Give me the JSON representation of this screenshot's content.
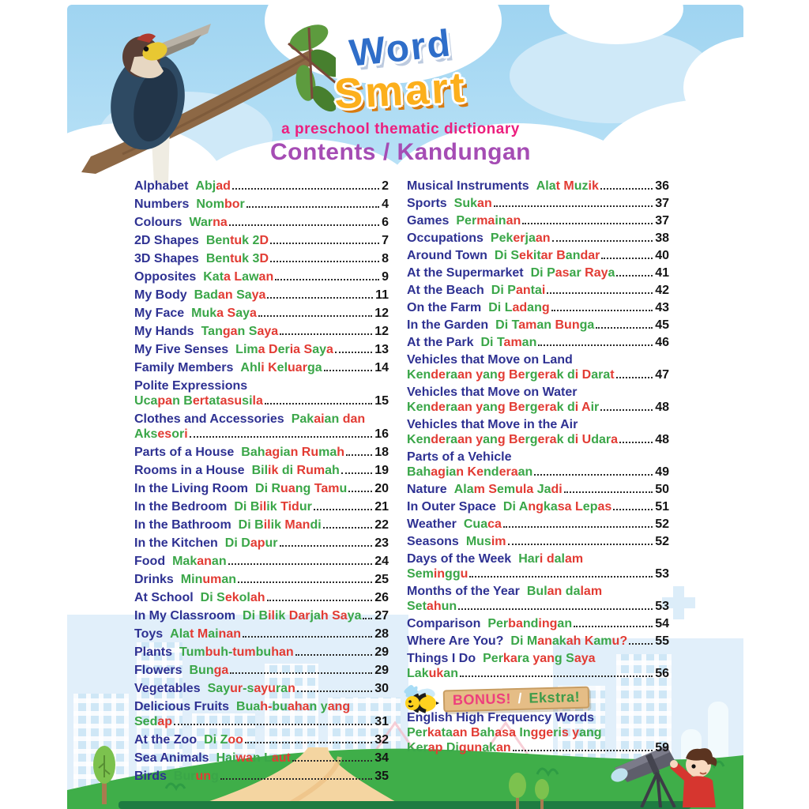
{
  "header": {
    "title_word": "Word",
    "title_smart": "Smart",
    "subtitle": "a preschool thematic dictionary",
    "heading": "Contents / Kandungan"
  },
  "colors": {
    "english_text": "#2e3192",
    "malay_green": "#3aa648",
    "malay_red": "#e23b33",
    "page_number": "#141414",
    "title_blue": "#2f6ec9",
    "title_yellow_orange": "#fcaf1c",
    "subtitle_pink": "#ec1f7e",
    "heading_purple": "#a54cb4",
    "banner_tan": "#e5bd86",
    "bonus_pink": "#ee3f7d",
    "bonus_green": "#3f9c4a",
    "sky_blue": "#9fd4f1",
    "hill_green": "#3fae49",
    "path_tan": "#f4d5a1"
  },
  "toc": {
    "left": [
      {
        "en": "Alphabet",
        "ms": "Abjad",
        "page": "2"
      },
      {
        "en": "Numbers",
        "ms": "Nombor",
        "page": "4"
      },
      {
        "en": "Colours",
        "ms": "Warna",
        "page": "6"
      },
      {
        "en": "2D Shapes",
        "ms": "Bentuk 2D",
        "page": "7"
      },
      {
        "en": "3D Shapes",
        "ms": "Bentuk 3D",
        "page": "8"
      },
      {
        "en": "Opposites",
        "ms": "Kata Lawan",
        "page": "9"
      },
      {
        "en": "My Body",
        "ms": "Badan Saya",
        "page": "11"
      },
      {
        "en": "My Face",
        "ms": "Muka Saya",
        "page": "12"
      },
      {
        "en": "My Hands",
        "ms": "Tangan Saya",
        "page": "12"
      },
      {
        "en": "My Five Senses",
        "ms": "Lima Deria Saya",
        "page": "13"
      },
      {
        "en": "Family Members",
        "ms": "Ahli Keluarga",
        "page": "14"
      },
      {
        "en": "Polite Expressions",
        "ms": "Ucapan Bertatasusila",
        "page": "15",
        "break_after_en": true
      },
      {
        "en": "Clothes and Accessories",
        "ms": "Pakaian dan|Aksesori",
        "page": "16"
      },
      {
        "en": "Parts of a House",
        "ms": "Bahagian Rumah",
        "page": "18"
      },
      {
        "en": "Rooms in a House",
        "ms": "Bilik di Rumah",
        "page": "19"
      },
      {
        "en": "In the Living Room",
        "ms": "Di Ruang Tamu",
        "page": "20"
      },
      {
        "en": "In the Bedroom",
        "ms": "Di Bilik Tidur",
        "page": "21"
      },
      {
        "en": "In the Bathroom",
        "ms": "Di Bilik Mandi",
        "page": "22"
      },
      {
        "en": "In the Kitchen",
        "ms": "Di Dapur",
        "page": "23"
      },
      {
        "en": "Food",
        "ms": "Makanan",
        "page": "24"
      },
      {
        "en": "Drinks",
        "ms": "Minuman",
        "page": "25"
      },
      {
        "en": "At School",
        "ms": "Di Sekolah",
        "page": "26"
      },
      {
        "en": "In My Classroom",
        "ms": "Di Bilik Darjah Saya",
        "page": "27"
      },
      {
        "en": "Toys",
        "ms": "Alat Mainan",
        "page": "28"
      },
      {
        "en": "Plants",
        "ms": "Tumbuh-tumbuhan",
        "page": "29"
      },
      {
        "en": "Flowers",
        "ms": "Bunga",
        "page": "29"
      },
      {
        "en": "Vegetables",
        "ms": "Sayur-sayuran",
        "page": "30"
      },
      {
        "en": "Delicious Fruits",
        "ms": "Buah-buahan yang|Sedap",
        "page": "31"
      },
      {
        "en": "At the Zoo",
        "ms": "Di Zoo",
        "page": "32"
      },
      {
        "en": "Sea Animals",
        "ms": "Haiwan Laut",
        "page": "34"
      },
      {
        "en": "Birds",
        "ms": "Burung",
        "page": "35"
      }
    ],
    "right": [
      {
        "en": "Musical Instruments",
        "ms": "Alat Muzik",
        "page": "36"
      },
      {
        "en": "Sports",
        "ms": "Sukan",
        "page": "37"
      },
      {
        "en": "Games",
        "ms": "Permainan",
        "page": "37"
      },
      {
        "en": "Occupations",
        "ms": "Pekerjaan",
        "page": "38"
      },
      {
        "en": "Around Town",
        "ms": "Di Sekitar Bandar",
        "page": "40"
      },
      {
        "en": "At the Supermarket",
        "ms": "Di Pasar Raya",
        "page": "41"
      },
      {
        "en": "At the Beach",
        "ms": "Di Pantai",
        "page": "42"
      },
      {
        "en": "On the Farm",
        "ms": "Di Ladang",
        "page": "43"
      },
      {
        "en": "In the Garden",
        "ms": "Di Taman Bunga",
        "page": "45"
      },
      {
        "en": "At the Park",
        "ms": "Di Taman",
        "page": "46"
      },
      {
        "en": "Vehicles that Move on Land",
        "ms": "Kenderaan yang Bergerak di Darat",
        "page": "47",
        "break_after_en": true
      },
      {
        "en": "Vehicles that Move on Water",
        "ms": "Kenderaan yang Bergerak di Air",
        "page": "48",
        "break_after_en": true
      },
      {
        "en": "Vehicles that Move in the Air",
        "ms": "Kenderaan yang Bergerak di Udara",
        "page": "48",
        "break_after_en": true
      },
      {
        "en": "Parts of a Vehicle",
        "ms": "Bahagian Kenderaan",
        "page": "49",
        "break_after_en": true
      },
      {
        "en": "Nature",
        "ms": "Alam Semula Jadi",
        "page": "50"
      },
      {
        "en": "In Outer Space",
        "ms": "Di Angkasa Lepas",
        "page": "51"
      },
      {
        "en": "Weather",
        "ms": "Cuaca",
        "page": "52"
      },
      {
        "en": "Seasons",
        "ms": "Musim",
        "page": "52"
      },
      {
        "en": "Days of the Week",
        "ms": "Hari dalam|Seminggu",
        "page": "53"
      },
      {
        "en": "Months of the Year",
        "ms": "Bulan dalam|Setahun",
        "page": "53"
      },
      {
        "en": "Comparison",
        "ms": "Perbandingan",
        "page": "54"
      },
      {
        "en": "Where Are You?",
        "ms": "Di Manakah Kamu?",
        "page": "55"
      },
      {
        "en": "Things I Do",
        "ms": "Perkara yang Saya|Lakukan",
        "page": "56"
      }
    ]
  },
  "bonus": {
    "label_en": "BONUS!",
    "separator": "/",
    "label_ms": "Ekstra!",
    "entry": {
      "en": "English High Frequency Words",
      "ms": "Perkataan Bahasa Inggeris yang|Kerap Digunakan",
      "page": "59",
      "break_after_en": true
    }
  },
  "decor": {
    "icons": [
      "hornbill-bird-icon",
      "branch-leaves-icon",
      "bee-icon",
      "telescope-boy-icon",
      "tree-icon",
      "cloud-icon",
      "city-skyline",
      "green-hill",
      "sand-path"
    ]
  }
}
